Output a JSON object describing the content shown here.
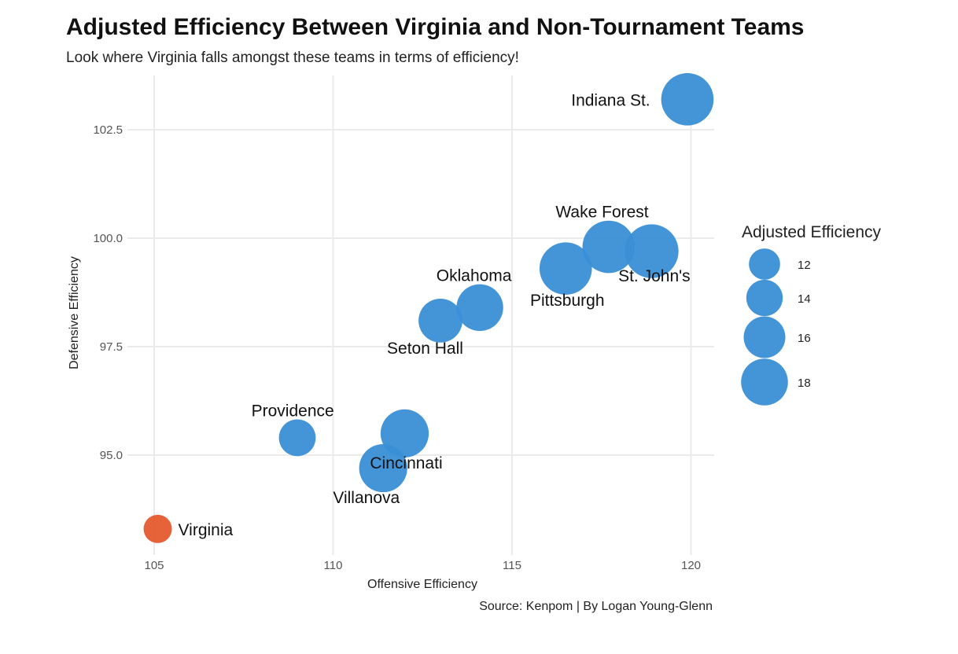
{
  "chart_data": {
    "type": "scatter",
    "title": "Adjusted Efficiency Between Virginia and Non-Tournament Teams",
    "subtitle": "Look where Virginia falls amongst these teams in terms of efficiency!",
    "caption": "Source: Kenpom | By Logan Young-Glenn",
    "xlabel": "Offensive Efficiency",
    "ylabel": "Defensive Efficiency",
    "xlim": [
      104.2,
      120.7
    ],
    "ylim": [
      92.3,
      104.0
    ],
    "xticks": [
      105,
      110,
      115,
      120
    ],
    "xtick_labels": [
      "105",
      "110",
      "115",
      "120"
    ],
    "yticks": [
      95.0,
      97.5,
      100.0,
      102.5
    ],
    "ytick_labels": [
      "95.0",
      "97.5",
      "100.0",
      "102.5"
    ],
    "grid": true,
    "colors": {
      "teams": "#3a8fd6",
      "virginia": "#e55a2e",
      "grid": "#ebebeb"
    },
    "points": [
      {
        "name": "Indiana St.",
        "x": 119.9,
        "y": 103.2,
        "size": 18.5,
        "color": "#3a8fd6",
        "label_pos": "left"
      },
      {
        "name": "Wake Forest",
        "x": 117.7,
        "y": 99.8,
        "size": 18.5,
        "color": "#3a8fd6",
        "label_pos": "above-left"
      },
      {
        "name": "St. John's",
        "x": 118.9,
        "y": 99.7,
        "size": 19,
        "color": "#3a8fd6",
        "label_pos": "below-right"
      },
      {
        "name": "Pittsburgh",
        "x": 116.5,
        "y": 99.3,
        "size": 18.5,
        "color": "#3a8fd6",
        "label_pos": "below"
      },
      {
        "name": "Oklahoma",
        "x": 114.1,
        "y": 98.4,
        "size": 16.5,
        "color": "#3a8fd6",
        "label_pos": "above-left"
      },
      {
        "name": "Seton Hall",
        "x": 113.0,
        "y": 98.1,
        "size": 15.5,
        "color": "#3a8fd6",
        "label_pos": "below-left"
      },
      {
        "name": "Providence",
        "x": 109.0,
        "y": 95.4,
        "size": 13,
        "color": "#3a8fd6",
        "label_pos": "above-left"
      },
      {
        "name": "Cincinnati",
        "x": 112.0,
        "y": 95.5,
        "size": 17,
        "color": "#3a8fd6",
        "label_pos": "below"
      },
      {
        "name": "Villanova",
        "x": 111.4,
        "y": 94.7,
        "size": 17,
        "color": "#3a8fd6",
        "label_pos": "below-left"
      },
      {
        "name": "Virginia",
        "x": 105.1,
        "y": 93.3,
        "size": 10,
        "color": "#e55a2e",
        "label_pos": "right"
      }
    ],
    "legend": {
      "title": "Adjusted Efficiency",
      "position": "right",
      "items": [
        {
          "label": "12",
          "size": 12
        },
        {
          "label": "14",
          "size": 14
        },
        {
          "label": "16",
          "size": 16
        },
        {
          "label": "18",
          "size": 18
        }
      ]
    }
  }
}
